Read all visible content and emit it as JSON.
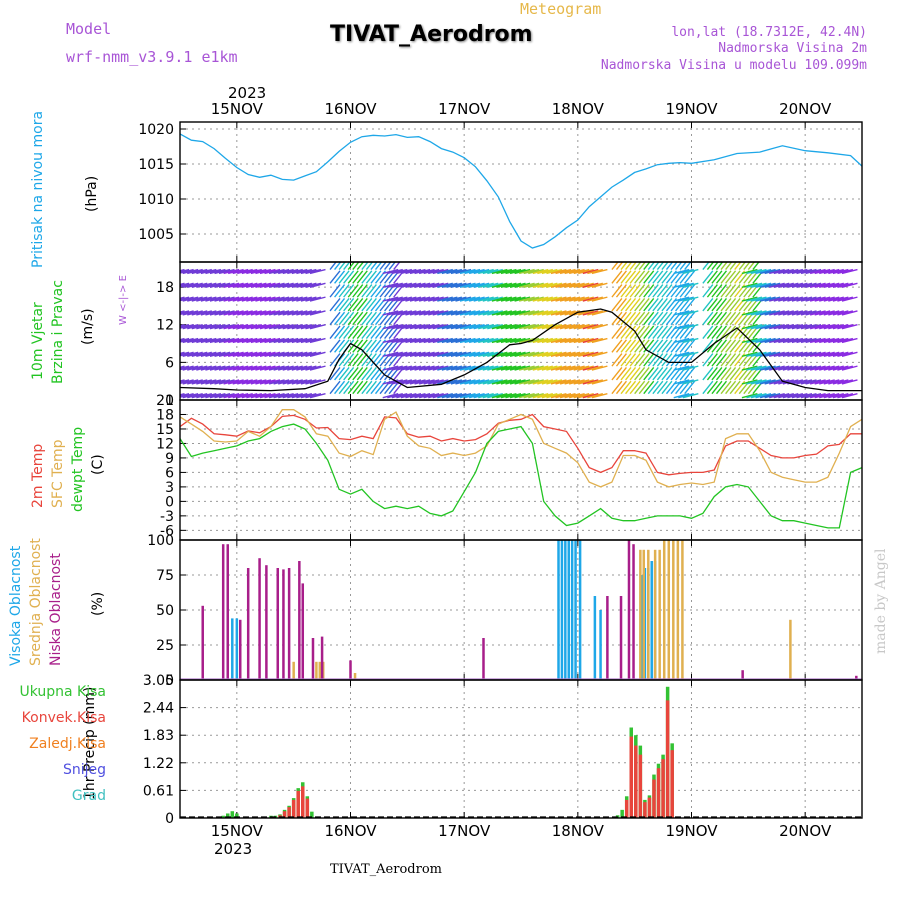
{
  "header": {
    "model_label": "Model",
    "model_name": "wrf-nmm_v3.9.1  e1km",
    "subtitle": "Meteogram",
    "station": "TIVAT_Aerodrom",
    "lonlat": "lon,lat (18.7312E, 42.4N)",
    "height": "Nadmorska Visina 2m",
    "model_height": "Nadmorska Visina u modelu 109.099m"
  },
  "footer": {
    "station": "TIVAT_Aerodrom"
  },
  "watermark": "made by Angel",
  "time_axis": {
    "year": "2023",
    "days": [
      "15NOV",
      "16NOV",
      "17NOV",
      "18NOV",
      "19NOV",
      "20NOV"
    ]
  },
  "panel_labels": {
    "pressure": {
      "name": "Pritisak na nivou mora",
      "unit": "(hPa)"
    },
    "wind": {
      "name1": "10m Vjetar",
      "name2": "Brzina i Pravac",
      "unit": "(m/s)",
      "compass": "W <-|-> E"
    },
    "temp": {
      "name1": "2m Temp",
      "name2": "SFC Temp",
      "name3": "dewpt Temp",
      "unit": "(C)"
    },
    "cloud": {
      "name1": "Visoka Oblacnost",
      "name2": "Srednja Oblacnost",
      "name3": "Niska Oblacnost",
      "unit": "(%)"
    },
    "precip": {
      "unit": "1hr Precip (mm)",
      "legend": [
        "Ukupna Kisa",
        "Konvek.Kisa",
        "Zaledj.Kisa",
        "Snijeg",
        "Grad"
      ]
    }
  },
  "colors": {
    "pressure": "#1ea7e8",
    "t2m": "#e8453c",
    "tsfc": "#e0b050",
    "dewpt": "#22c422",
    "high_cloud": "#1ea7e8",
    "mid_cloud": "#e0b050",
    "low_cloud": "#a81e8a",
    "total_rain": "#33c233",
    "conv_rain": "#e8453c",
    "frz_rain": "#f08020",
    "snow": "#5050e0",
    "graupel": "#40c0c0"
  },
  "chart_data": [
    {
      "type": "line",
      "title": "Pritisak na nivou mora",
      "ylabel": "(hPa)",
      "ylim": [
        1001,
        1021
      ],
      "yticks": [
        1005,
        1010,
        1015,
        1020
      ],
      "xlim": [
        -0.5,
        5.5
      ],
      "x_unit": "days since 15NOV 00Z",
      "series": [
        {
          "name": "Pritisak na nivou mora",
          "color": "#1ea7e8",
          "x": [
            -0.5,
            -0.4,
            -0.3,
            -0.2,
            -0.1,
            0.0,
            0.1,
            0.2,
            0.3,
            0.4,
            0.5,
            0.6,
            0.7,
            0.8,
            0.9,
            1.0,
            1.1,
            1.2,
            1.3,
            1.4,
            1.5,
            1.6,
            1.7,
            1.8,
            1.9,
            2.0,
            2.1,
            2.2,
            2.3,
            2.4,
            2.5,
            2.6,
            2.7,
            2.8,
            2.9,
            3.0,
            3.1,
            3.2,
            3.3,
            3.4,
            3.5,
            3.6,
            3.7,
            3.8,
            3.9,
            4.0,
            4.2,
            4.4,
            4.6,
            4.8,
            5.0,
            5.2,
            5.4,
            5.5
          ],
          "y": [
            1019.3,
            1018.4,
            1018.2,
            1017.2,
            1015.8,
            1014.5,
            1013.5,
            1013.1,
            1013.4,
            1012.8,
            1012.7,
            1013.3,
            1013.9,
            1015.3,
            1016.8,
            1018.1,
            1018.9,
            1019.1,
            1019.0,
            1019.2,
            1018.8,
            1018.9,
            1018.2,
            1017.2,
            1016.7,
            1015.9,
            1014.6,
            1012.6,
            1010.3,
            1006.8,
            1004.0,
            1003.0,
            1003.5,
            1004.6,
            1005.9,
            1007.0,
            1008.9,
            1010.3,
            1011.7,
            1012.7,
            1013.8,
            1014.3,
            1014.9,
            1015.1,
            1015.2,
            1015.1,
            1015.6,
            1016.5,
            1016.7,
            1017.6,
            1016.9,
            1016.6,
            1016.2,
            1014.7
          ]
        }
      ]
    },
    {
      "type": "line",
      "title": "10m Vjetar Brzina i Pravac",
      "ylabel": "(m/s)",
      "ylim": [
        0,
        22
      ],
      "yticks": [
        0,
        6,
        12,
        18
      ],
      "xlim": [
        -0.5,
        5.5
      ],
      "x_unit": "days since 15NOV 00Z",
      "series": [
        {
          "name": "Brzina",
          "color": "#000000",
          "x": [
            -0.5,
            -0.2,
            0.0,
            0.3,
            0.6,
            0.8,
            0.9,
            1.0,
            1.1,
            1.3,
            1.5,
            1.8,
            2.0,
            2.2,
            2.4,
            2.5,
            2.6,
            2.8,
            3.0,
            3.2,
            3.3,
            3.5,
            3.6,
            3.8,
            4.0,
            4.2,
            4.4,
            4.6,
            4.8,
            5.0,
            5.2,
            5.5
          ],
          "y": [
            2,
            1.8,
            1.6,
            1.5,
            1.8,
            3.0,
            6.5,
            9.0,
            8.0,
            4.0,
            2.0,
            2.5,
            4.0,
            6.0,
            8.8,
            9.0,
            9.5,
            12.0,
            14.0,
            14.5,
            14.0,
            11.0,
            8.0,
            6.0,
            6.0,
            9.0,
            11.5,
            8.0,
            3.0,
            2.0,
            1.5,
            1.5
          ]
        }
      ]
    },
    {
      "type": "line",
      "title": "Temp",
      "ylabel": "(C)",
      "ylim": [
        -8,
        21
      ],
      "yticks": [
        -6,
        -3,
        0,
        3,
        6,
        9,
        12,
        15,
        18,
        21
      ],
      "xlim": [
        -0.5,
        5.5
      ],
      "x_unit": "days since 15NOV 00Z",
      "series": [
        {
          "name": "2m Temp",
          "color": "#e8453c",
          "x": [
            -0.5,
            -0.4,
            -0.3,
            -0.2,
            -0.1,
            0.0,
            0.1,
            0.2,
            0.3,
            0.4,
            0.5,
            0.6,
            0.7,
            0.8,
            0.9,
            1.0,
            1.1,
            1.2,
            1.3,
            1.4,
            1.5,
            1.6,
            1.7,
            1.8,
            1.9,
            2.0,
            2.1,
            2.2,
            2.3,
            2.4,
            2.5,
            2.6,
            2.7,
            2.8,
            2.9,
            3.0,
            3.1,
            3.2,
            3.3,
            3.4,
            3.5,
            3.6,
            3.7,
            3.8,
            3.9,
            4.0,
            4.1,
            4.2,
            4.3,
            4.4,
            4.5,
            4.6,
            4.7,
            4.8,
            4.9,
            5.0,
            5.1,
            5.2,
            5.3,
            5.4,
            5.5
          ],
          "y": [
            15.5,
            17.2,
            16.0,
            14.0,
            13.8,
            13.5,
            14.6,
            14.2,
            15.5,
            17.6,
            17.8,
            17.0,
            15.2,
            15.3,
            13.0,
            12.8,
            13.5,
            13.0,
            17.5,
            17.3,
            14.0,
            13.3,
            13.5,
            12.5,
            13.0,
            12.5,
            12.8,
            14.0,
            16.2,
            16.8,
            17.0,
            18.0,
            15.5,
            15.0,
            14.5,
            11.0,
            7.0,
            6.0,
            7.0,
            10.5,
            10.5,
            10.0,
            6.0,
            5.5,
            5.8,
            6.0,
            6.0,
            6.5,
            11.5,
            12.5,
            12.5,
            11.0,
            9.5,
            9.0,
            9.0,
            9.5,
            9.8,
            11.5,
            11.8,
            14.0,
            14.0
          ]
        },
        {
          "name": "SFC Temp",
          "color": "#e0b050",
          "x": [
            -0.5,
            -0.4,
            -0.3,
            -0.2,
            -0.1,
            0.0,
            0.1,
            0.2,
            0.3,
            0.4,
            0.5,
            0.6,
            0.7,
            0.8,
            0.9,
            1.0,
            1.1,
            1.2,
            1.3,
            1.4,
            1.5,
            1.6,
            1.7,
            1.8,
            1.9,
            2.0,
            2.1,
            2.2,
            2.3,
            2.4,
            2.5,
            2.6,
            2.7,
            2.8,
            2.9,
            3.0,
            3.1,
            3.2,
            3.3,
            3.4,
            3.5,
            3.6,
            3.7,
            3.8,
            3.9,
            4.0,
            4.1,
            4.2,
            4.3,
            4.4,
            4.5,
            4.6,
            4.7,
            4.8,
            4.9,
            5.0,
            5.1,
            5.2,
            5.3,
            5.4,
            5.5
          ],
          "y": [
            17.5,
            16.0,
            14.5,
            12.5,
            12.3,
            12.5,
            14.5,
            13.5,
            15.5,
            19.0,
            19.0,
            17.5,
            14.0,
            13.5,
            10.0,
            9.3,
            10.5,
            9.7,
            17.0,
            18.5,
            13.5,
            11.5,
            11.0,
            9.5,
            10.0,
            9.5,
            10.0,
            11.5,
            16.0,
            17.0,
            18.0,
            17.0,
            12.0,
            11.0,
            10.0,
            8.0,
            4.0,
            3.0,
            4.0,
            9.5,
            9.5,
            8.5,
            4.0,
            3.0,
            3.5,
            3.8,
            3.5,
            4.0,
            13.0,
            14.0,
            14.0,
            10.5,
            6.0,
            5.0,
            4.5,
            4.0,
            4.0,
            5.0,
            10.0,
            15.5,
            17.0
          ]
        },
        {
          "name": "dewpt Temp",
          "color": "#22c422",
          "x": [
            -0.5,
            -0.4,
            -0.3,
            -0.2,
            -0.1,
            0.0,
            0.1,
            0.2,
            0.3,
            0.4,
            0.5,
            0.6,
            0.7,
            0.8,
            0.9,
            1.0,
            1.1,
            1.2,
            1.3,
            1.4,
            1.5,
            1.6,
            1.7,
            1.8,
            1.9,
            2.0,
            2.1,
            2.2,
            2.3,
            2.4,
            2.5,
            2.6,
            2.7,
            2.8,
            2.9,
            3.0,
            3.1,
            3.2,
            3.3,
            3.4,
            3.5,
            3.6,
            3.7,
            3.8,
            3.9,
            4.0,
            4.1,
            4.2,
            4.3,
            4.4,
            4.5,
            4.6,
            4.7,
            4.8,
            4.9,
            5.0,
            5.1,
            5.2,
            5.3,
            5.4,
            5.5
          ],
          "y": [
            13.0,
            9.3,
            10.0,
            10.5,
            11.0,
            11.5,
            12.5,
            13.0,
            14.5,
            15.5,
            16.0,
            15.0,
            12.0,
            8.5,
            2.5,
            1.5,
            2.5,
            0.0,
            -1.5,
            -1.0,
            -1.5,
            -1.0,
            -2.5,
            -3.0,
            -2.0,
            2.0,
            6.0,
            12.0,
            14.5,
            15.0,
            15.5,
            12.0,
            0.0,
            -3.0,
            -5.0,
            -4.5,
            -3.0,
            -1.5,
            -3.5,
            -4.0,
            -4.0,
            -3.5,
            -3.0,
            -3.0,
            -3.0,
            -3.5,
            -2.5,
            1.0,
            3.0,
            3.5,
            3.0,
            0.0,
            -3.0,
            -4.0,
            -4.0,
            -4.5,
            -5.0,
            -5.5,
            -5.5,
            6.0,
            7.0
          ]
        }
      ]
    },
    {
      "type": "bar",
      "title": "Oblacnost",
      "ylabel": "(%)",
      "ylim": [
        0,
        100
      ],
      "yticks": [
        0,
        25,
        50,
        75,
        100
      ],
      "xlim": [
        -0.5,
        5.5
      ],
      "x_unit": "days since 15NOV 00Z",
      "series": [
        {
          "name": "Visoka Oblacnost",
          "color": "#1ea7e8",
          "x": [
            -0.04,
            0.0,
            2.83,
            2.86,
            2.89,
            2.92,
            2.95,
            2.98,
            3.02,
            3.15,
            3.2,
            3.56,
            3.59,
            3.62,
            3.65,
            3.68
          ],
          "y": [
            44,
            44,
            100,
            100,
            100,
            100,
            100,
            100,
            100,
            60,
            50,
            75,
            80,
            80,
            85,
            85
          ]
        },
        {
          "name": "Srednja Oblacnost",
          "color": "#e0b050",
          "x": [
            0.5,
            0.7,
            0.73,
            0.76,
            1.04,
            3.55,
            3.58,
            3.62,
            3.68,
            3.72,
            3.76,
            3.8,
            3.84,
            3.88,
            3.92,
            4.87
          ],
          "y": [
            13,
            13,
            13,
            13,
            5,
            93,
            93,
            93,
            93,
            93,
            100,
            100,
            100,
            100,
            100,
            43
          ]
        },
        {
          "name": "Niska Oblacnost",
          "color": "#a81e8a",
          "x": [
            -0.3,
            -0.12,
            -0.08,
            0.03,
            0.1,
            0.2,
            0.26,
            0.36,
            0.41,
            0.46,
            0.55,
            0.58,
            0.67,
            0.75,
            1.0,
            2.17,
            3.26,
            3.38,
            3.45,
            3.49,
            4.45,
            5.45
          ],
          "y": [
            53,
            97,
            97,
            43,
            80,
            87,
            82,
            80,
            79,
            80,
            85,
            69,
            30,
            31,
            14,
            30,
            60,
            60,
            100,
            97,
            7,
            3
          ]
        }
      ]
    },
    {
      "type": "bar",
      "title": "1hr Precip",
      "ylabel": "1hr Precip (mm)",
      "ylim": [
        0,
        3.05
      ],
      "yticks": [
        0,
        0.61,
        1.22,
        1.83,
        2.44,
        3.05
      ],
      "xlim": [
        -0.5,
        5.5
      ],
      "x_unit": "days since 15NOV 00Z",
      "series": [
        {
          "name": "Ukupna Kisa",
          "color": "#33c233",
          "x": [
            -0.12,
            -0.08,
            -0.04,
            0.0,
            0.3,
            0.34,
            0.38,
            0.42,
            0.46,
            0.5,
            0.54,
            0.58,
            0.62,
            0.66,
            3.35,
            3.39,
            3.43,
            3.47,
            3.51,
            3.55,
            3.59,
            3.63,
            3.67,
            3.71,
            3.75,
            3.79,
            3.83
          ],
          "y": [
            0.05,
            0.1,
            0.15,
            0.1,
            0.05,
            0.05,
            0.08,
            0.18,
            0.27,
            0.44,
            0.66,
            0.79,
            0.48,
            0.14,
            0.06,
            0.18,
            0.48,
            2.0,
            1.83,
            1.6,
            0.4,
            0.5,
            0.96,
            1.2,
            1.4,
            2.9,
            1.65
          ]
        },
        {
          "name": "Konvek.Kisa",
          "color": "#e8453c",
          "x": [
            0.38,
            0.42,
            0.46,
            0.5,
            0.54,
            0.58,
            0.62,
            3.43,
            3.47,
            3.51,
            3.55,
            3.59,
            3.63,
            3.67,
            3.71,
            3.75,
            3.79,
            3.83
          ],
          "y": [
            0.06,
            0.15,
            0.24,
            0.4,
            0.6,
            0.7,
            0.43,
            0.4,
            1.8,
            1.6,
            1.4,
            0.35,
            0.45,
            0.85,
            1.1,
            1.3,
            2.6,
            1.5
          ]
        }
      ]
    }
  ]
}
